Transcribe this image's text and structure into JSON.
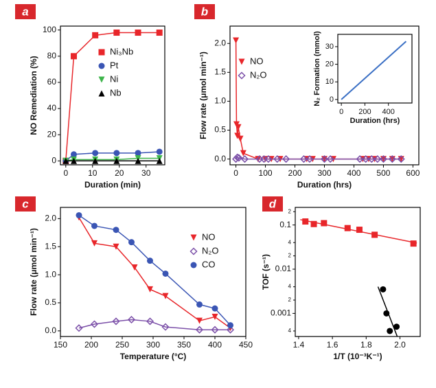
{
  "chart_data": [
    {
      "type": "scatter",
      "label": "a",
      "xlabel": "Duration (min)",
      "ylabel": "NO Remediation (%)",
      "xlim": [
        -2,
        37
      ],
      "xticks": [
        0,
        10,
        20,
        30
      ],
      "ylim": [
        -3,
        103
      ],
      "yticks": [
        0,
        20,
        40,
        60,
        80,
        100
      ],
      "legend": "center",
      "series": [
        {
          "name": "Ni₃Nb",
          "color": "#e8262a",
          "marker": "square",
          "x": [
            0,
            3,
            11,
            19,
            27,
            35
          ],
          "values": [
            0,
            80,
            96,
            98,
            98,
            98
          ]
        },
        {
          "name": "Pt",
          "color": "#3a55b4",
          "marker": "circle",
          "x": [
            0,
            3,
            11,
            19,
            27,
            35
          ],
          "values": [
            0,
            5,
            6,
            6,
            6,
            7
          ]
        },
        {
          "name": "Ni",
          "color": "#3cb44a",
          "marker": "triangle-down",
          "x": [
            0,
            3,
            11,
            19,
            27,
            35
          ],
          "values": [
            0,
            1,
            1,
            1,
            2,
            2
          ]
        },
        {
          "name": "Nb",
          "color": "#000000",
          "marker": "triangle",
          "x": [
            0,
            3,
            11,
            19,
            27,
            35
          ],
          "values": [
            0,
            0,
            0,
            0,
            0,
            0
          ]
        }
      ]
    },
    {
      "type": "scatter",
      "label": "b",
      "xlabel": "Duration (hrs)",
      "ylabel": "Flow rate (μmol min⁻¹)",
      "xlim": [
        -20,
        620
      ],
      "xticks": [
        0,
        100,
        200,
        300,
        400,
        500,
        600
      ],
      "ylim": [
        -0.1,
        2.3
      ],
      "yticks": [
        {
          "value": 0,
          "label": "0.0"
        },
        0.5,
        {
          "value": 1,
          "label": "1.0"
        },
        1.5,
        {
          "value": 2,
          "label": "2.0"
        }
      ],
      "legend": "upper left",
      "series": [
        {
          "name": "NO",
          "color": "#e8262a",
          "marker": "triangle-down",
          "x": [
            0,
            2,
            5,
            8,
            15,
            25,
            75,
            100,
            120,
            150,
            240,
            260,
            300,
            330,
            430,
            450,
            470,
            500,
            530,
            560
          ],
          "values": [
            2.05,
            0.6,
            0.4,
            0.55,
            0.35,
            0.1,
            0,
            0,
            0,
            0,
            0,
            0,
            0,
            0,
            0,
            0,
            0,
            0,
            0,
            0
          ]
        },
        {
          "name": "N₂O",
          "color": "#7b4fa8",
          "marker": "diamond-open",
          "x": [
            0,
            5,
            10,
            30,
            80,
            95,
            110,
            140,
            170,
            230,
            250,
            300,
            320,
            420,
            440,
            460,
            480,
            500,
            530,
            560
          ],
          "values": [
            0,
            0.03,
            0.02,
            0,
            0,
            0,
            0,
            0,
            0,
            0,
            0,
            0,
            0,
            0,
            0,
            0,
            0,
            0,
            0,
            0
          ]
        }
      ]
    },
    {
      "type": "line",
      "xlabel": "Duration (hrs)",
      "ylabel": "N₂ Formation (mmol)",
      "xlim": [
        -30,
        600
      ],
      "xticks": [
        0,
        200,
        400
      ],
      "ylim": [
        -2,
        37
      ],
      "yticks": [
        0,
        10,
        20,
        30
      ],
      "series": [
        {
          "color": "#3a6fc4",
          "x": [
            0,
            550
          ],
          "values": [
            0,
            33
          ]
        }
      ]
    },
    {
      "type": "scatter",
      "label": "c",
      "xlabel": "Temperature (°C)",
      "ylabel": "Flow rate (μmol min⁻¹)",
      "xlim": [
        150,
        450
      ],
      "xticks": [
        150,
        200,
        250,
        300,
        350,
        400,
        450
      ],
      "ylim": [
        -0.1,
        2.2
      ],
      "yticks": [
        {
          "value": 0,
          "label": "0.0"
        },
        0.5,
        {
          "value": 1,
          "label": "1.0"
        },
        1.5,
        {
          "value": 2,
          "label": "2.0"
        }
      ],
      "legend": "upper right",
      "series": [
        {
          "name": "NO",
          "color": "#e8262a",
          "marker": "triangle-down",
          "x": [
            180,
            205,
            240,
            270,
            295,
            320,
            375,
            400,
            425
          ],
          "values": [
            2.02,
            1.56,
            1.5,
            1.13,
            0.74,
            0.62,
            0.18,
            0.25,
            0.05
          ]
        },
        {
          "name": "N₂O",
          "color": "#7b4fa8",
          "marker": "diamond-open",
          "x": [
            180,
            205,
            240,
            265,
            295,
            320,
            375,
            400,
            425
          ],
          "values": [
            0.05,
            0.12,
            0.17,
            0.2,
            0.17,
            0.07,
            0.02,
            0.02,
            0.02
          ]
        },
        {
          "name": "CO",
          "color": "#3a55b4",
          "marker": "circle",
          "x": [
            180,
            205,
            240,
            265,
            295,
            320,
            375,
            400,
            425
          ],
          "values": [
            2.06,
            1.87,
            1.8,
            1.58,
            1.25,
            1.02,
            0.47,
            0.4,
            0.1
          ]
        }
      ]
    },
    {
      "type": "scatter",
      "label": "d",
      "xlabel": "1/T (10⁻³K⁻¹)",
      "ylabel": "TOF (s⁻¹)",
      "log_y": true,
      "xlim": [
        1.38,
        2.12
      ],
      "xticks": [
        1.4,
        1.6,
        1.8,
        {
          "value": 2,
          "label": "2.0"
        }
      ],
      "ylim": [
        0.0003,
        0.25
      ],
      "yticks": [
        {
          "value": 0.0004,
          "label": "4"
        },
        0.001,
        {
          "value": 0.002,
          "label": "2"
        },
        {
          "value": 0.004,
          "label": "4"
        },
        0.01,
        {
          "value": 0.02,
          "label": "2"
        },
        {
          "value": 0.04,
          "label": "4"
        },
        0.1,
        {
          "value": 0.2,
          "label": "2"
        }
      ],
      "series": [
        {
          "color": "#e8262a",
          "marker": "square",
          "x": [
            1.44,
            1.49,
            1.55,
            1.69,
            1.76,
            1.85,
            2.08
          ],
          "values": [
            0.12,
            0.105,
            0.11,
            0.085,
            0.078,
            0.06,
            0.038
          ]
        },
        {
          "color": "#000000",
          "marker": "circle",
          "x": [
            1.9,
            1.92,
            1.94,
            1.98
          ],
          "values": [
            0.0035,
            0.001,
            0.0004,
            0.0005
          ]
        }
      ]
    }
  ]
}
